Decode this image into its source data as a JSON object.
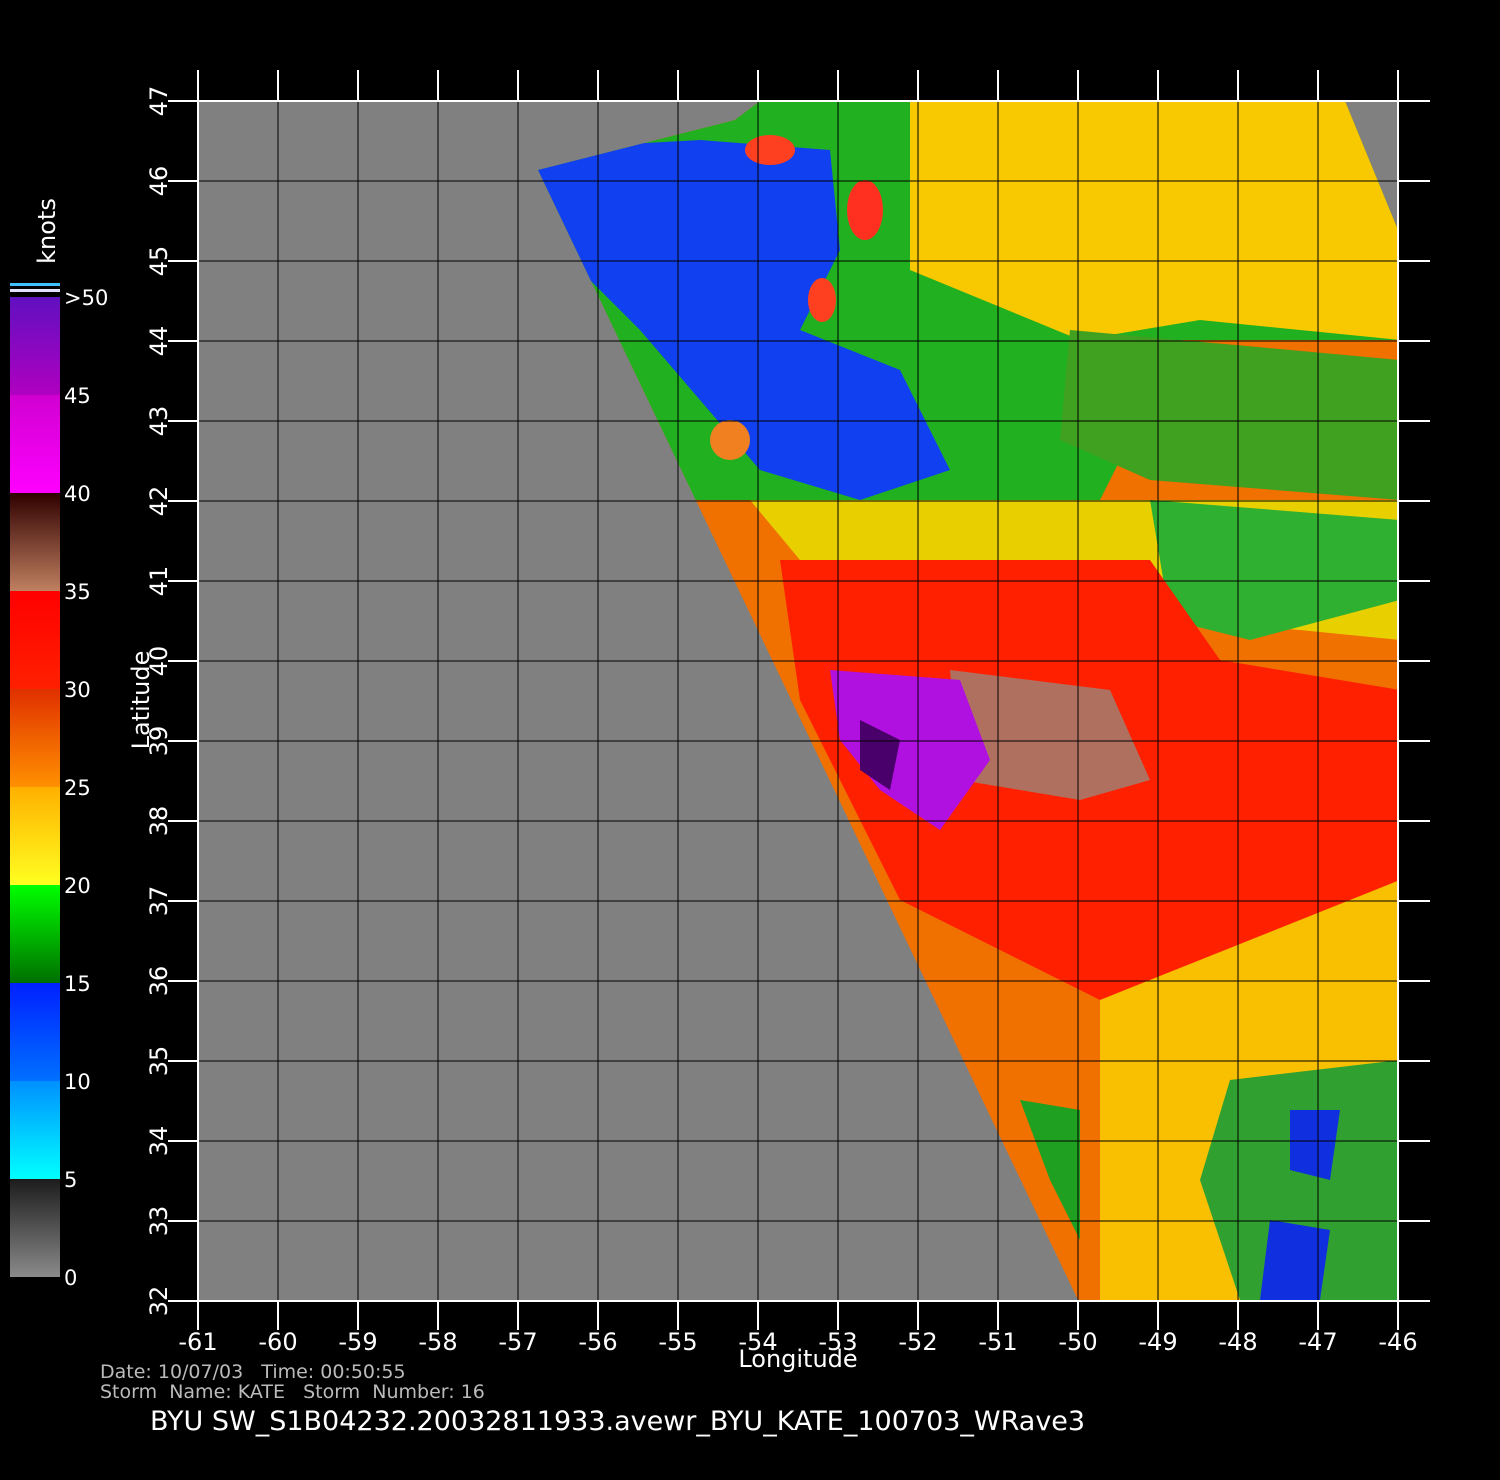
{
  "map": {
    "xlabel": "Longitude",
    "ylabel": "Latitude",
    "xlim": [
      -61,
      -46
    ],
    "ylim": [
      32,
      47
    ],
    "xticks": [
      -61,
      -60,
      -59,
      -58,
      -57,
      -56,
      -55,
      -54,
      -53,
      -52,
      -51,
      -50,
      -49,
      -48,
      -47,
      -46
    ],
    "yticks": [
      32,
      33,
      34,
      35,
      36,
      37,
      38,
      39,
      40,
      41,
      42,
      43,
      44,
      45,
      46,
      47
    ]
  },
  "colorbar": {
    "label": "knots",
    "lim": [
      0,
      50
    ],
    "ticks": [
      0,
      5,
      10,
      15,
      20,
      25,
      30,
      35,
      40,
      45,
      {
        "value": 50,
        "label": ">50"
      }
    ]
  },
  "info": {
    "line1": "Date: 10/07/03   Time: 00:50:55",
    "line2": "Storm  Name: KATE   Storm  Number: 16"
  },
  "title": "BYU  SW_S1B04232.20032811933.avewr_BYU_KATE_100703_WRave3"
}
